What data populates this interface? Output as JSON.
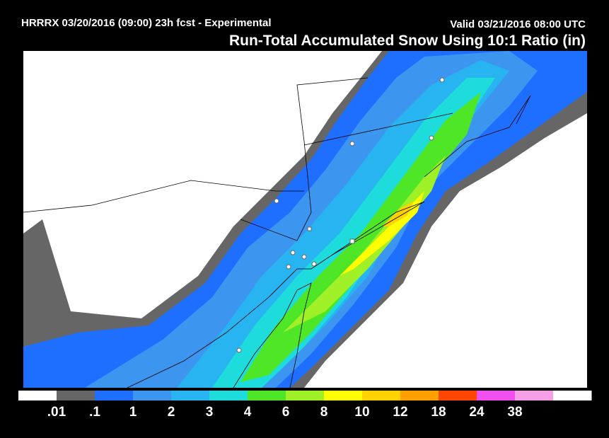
{
  "header": {
    "left": "HRRRX 03/20/2016 (09:00) 23h fcst - Experimental",
    "right": "Valid 03/21/2016 08:00 UTC",
    "title": "Run-Total Accumulated Snow Using 10:1 Ratio (in)"
  },
  "colorbar": {
    "colors": [
      "#ffffff",
      "#666666",
      "#1e6eff",
      "#3c96f0",
      "#28b4f0",
      "#1edcdc",
      "#50e628",
      "#a0f028",
      "#ffff00",
      "#ffd200",
      "#ffa000",
      "#ff4600",
      "#f050f0",
      "#f5a0e6",
      "#ffffff"
    ],
    "labels": [
      ".01",
      ".1",
      "1",
      "2",
      "3",
      "4",
      "6",
      "8",
      "10",
      "12",
      "18",
      "24",
      "38"
    ]
  }
}
